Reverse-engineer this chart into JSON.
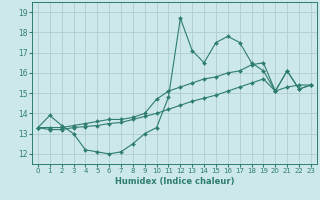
{
  "xlabel": "Humidex (Indice chaleur)",
  "x_values": [
    0,
    1,
    2,
    3,
    4,
    5,
    6,
    7,
    8,
    9,
    10,
    11,
    12,
    13,
    14,
    15,
    16,
    17,
    18,
    19,
    20,
    21,
    22,
    23
  ],
  "line1": [
    13.3,
    13.9,
    13.4,
    13.0,
    12.2,
    12.1,
    12.0,
    12.1,
    12.5,
    13.0,
    13.3,
    14.8,
    18.7,
    17.1,
    16.5,
    17.5,
    17.8,
    17.5,
    16.5,
    16.1,
    15.1,
    16.1,
    15.2,
    15.4
  ],
  "line2": [
    13.3,
    13.3,
    13.3,
    13.4,
    13.5,
    13.6,
    13.7,
    13.7,
    13.8,
    14.0,
    14.7,
    15.1,
    15.3,
    15.5,
    15.7,
    15.8,
    16.0,
    16.1,
    16.4,
    16.5,
    15.1,
    16.1,
    15.2,
    15.4
  ],
  "line3": [
    13.3,
    13.2,
    13.2,
    13.3,
    13.35,
    13.4,
    13.5,
    13.55,
    13.7,
    13.85,
    14.0,
    14.2,
    14.4,
    14.6,
    14.75,
    14.9,
    15.1,
    15.3,
    15.5,
    15.7,
    15.1,
    15.3,
    15.4,
    15.4
  ],
  "line_color": "#2e7d6e",
  "bg_color": "#cce8e8",
  "grid_color": "#b0cccc",
  "ylim": [
    11.5,
    19.5
  ],
  "xlim": [
    -0.5,
    23.5
  ],
  "yticks": [
    12,
    13,
    14,
    15,
    16,
    17,
    18,
    19
  ],
  "xticks": [
    0,
    1,
    2,
    3,
    4,
    5,
    6,
    7,
    8,
    9,
    10,
    11,
    12,
    13,
    14,
    15,
    16,
    17,
    18,
    19,
    20,
    21,
    22,
    23
  ]
}
